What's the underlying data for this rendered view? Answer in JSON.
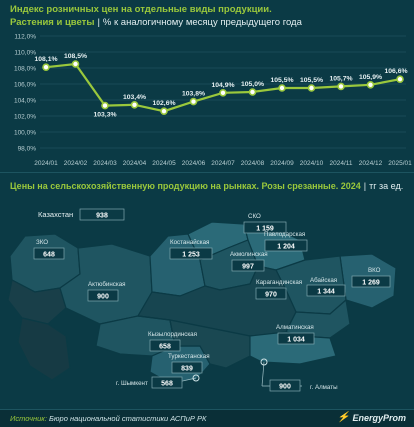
{
  "header": {
    "title": "Индекс розничных цен на отдельные виды продукции.",
    "category": "Растения и цветы",
    "separator": "|",
    "subtitle": "% к аналогичному месяцу предыдущего года"
  },
  "chart_data": [
    {
      "type": "line",
      "title": "Индекс розничных цен на отдельные виды продукции.",
      "categories": [
        "2024/01",
        "2024/02",
        "2024/03",
        "2024/04",
        "2024/05",
        "2024/06",
        "2024/07",
        "2024/08",
        "2024/09",
        "2024/10",
        "2024/11",
        "2024/12",
        "2025/01"
      ],
      "series": [
        {
          "values": [
            108.1,
            108.5,
            103.3,
            103.4,
            102.6,
            103.8,
            104.9,
            105.0,
            105.5,
            105.5,
            105.7,
            105.9,
            106.6
          ],
          "labels": [
            "108,1%",
            "108,5%",
            "103,3%",
            "103,4%",
            "102,6%",
            "103,8%",
            "104,9%",
            "105,0%",
            "105,5%",
            "105,5%",
            "105,7%",
            "105,9%",
            "106,6%"
          ]
        }
      ],
      "ylim": [
        98,
        112
      ],
      "yticks": [
        98,
        100,
        102,
        104,
        106,
        108,
        110,
        112
      ],
      "ytick_labels": [
        "98,0%",
        "100,0%",
        "102,0%",
        "104,0%",
        "106,0%",
        "108,0%",
        "110,0%",
        "112,0%"
      ],
      "grid": true,
      "colors": {
        "line": "#9ac83c",
        "marker_fill": "#ffffff",
        "grid": "#2a5d68"
      }
    },
    {
      "type": "map",
      "title": "Цены на сельскохозяйственную продукцию на рынках. Розы срезанные. 2024",
      "unit": "тг за ед.",
      "national": {
        "name": "Казахстан",
        "value": "938"
      },
      "regions": [
        {
          "key": "sko",
          "name": "СКО",
          "value": "1 159"
        },
        {
          "key": "kostanay",
          "name": "Костанайская",
          "value": "1 253"
        },
        {
          "key": "pavlodar",
          "name": "Павлодарская",
          "value": "1 204"
        },
        {
          "key": "akmola",
          "name": "Акмолинская",
          "value": "997"
        },
        {
          "key": "zko",
          "name": "ЗКО",
          "value": "648"
        },
        {
          "key": "vko",
          "name": "ВКО",
          "value": "1 269"
        },
        {
          "key": "abai",
          "name": "Абайская",
          "value": "1 344"
        },
        {
          "key": "aktobe",
          "name": "Актюбинская",
          "value": "900"
        },
        {
          "key": "karaganda",
          "name": "Карагандинская",
          "value": "970"
        },
        {
          "key": "kyzylorda",
          "name": "Кызылординская",
          "value": "658"
        },
        {
          "key": "almaty_reg",
          "name": "Алматинская",
          "value": "1 034"
        },
        {
          "key": "turkestan",
          "name": "Туркестанская",
          "value": "839"
        },
        {
          "key": "shymkent",
          "name": "г. Шымкент",
          "value": "568"
        },
        {
          "key": "almaty_city",
          "name": "г. Алматы",
          "value": "900"
        }
      ],
      "colors": {
        "land": "#1f5561",
        "land_dark": "#163f49",
        "border": "#0b3a45",
        "value_box": "#0b3a45",
        "value_border": "#7fa8b0"
      }
    }
  ],
  "map_header": {
    "title": "Цены на сельскохозяйственную продукцию на рынках. Розы срезанные. 2024",
    "separator": "|",
    "unit": "тг за ед."
  },
  "footer": {
    "source_label": "Источник:",
    "source_text": "Бюро национальной статистики АСПиР РК",
    "logo_text": "EnergyProm",
    "logo_icon": "energyprom-logo-icon"
  }
}
